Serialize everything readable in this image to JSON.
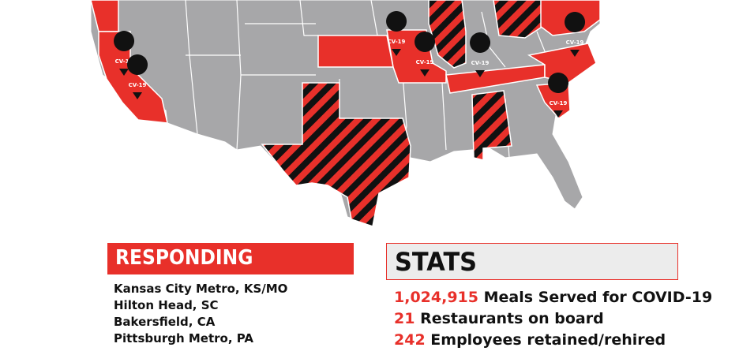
{
  "colors": {
    "responding_red": "#e8302a",
    "inactive_gray": "#a7a7a9",
    "stripe_black": "#111111",
    "background": "#ffffff"
  },
  "map": {
    "pin_label": "CV-19",
    "pin_icon": "map-marker-icon",
    "legend_states": {
      "solid_red": [
        "California",
        "Kansas",
        "Missouri",
        "Tennessee",
        "North Carolina",
        "South Carolina",
        "Northeast"
      ],
      "striped": [
        "Texas",
        "Illinois",
        "Alabama",
        "Ohio"
      ]
    }
  },
  "responding": {
    "title": "RESPONDING",
    "locations": [
      "Kansas City Metro, KS/MO",
      "Hilton Head, SC",
      "Bakersfield, CA",
      "Pittsburgh Metro, PA"
    ]
  },
  "stats": {
    "title": "STATS",
    "items": [
      {
        "number": "1,024,915",
        "text": "Meals Served for COVID-19"
      },
      {
        "number": "21",
        "text": "Restaurants on board"
      },
      {
        "number": "242",
        "text": "Employees retained/rehired"
      }
    ]
  }
}
